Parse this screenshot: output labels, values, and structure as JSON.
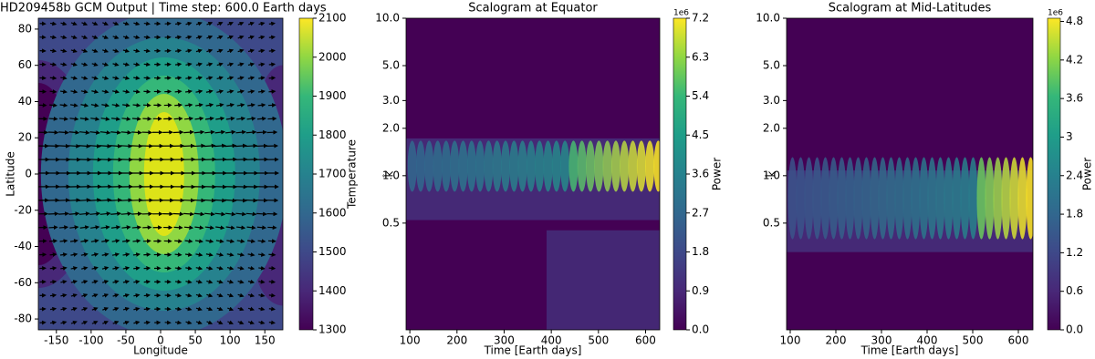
{
  "chart_data": [
    {
      "type": "contour",
      "title": "HD209458b GCM Output | Time step: 600.0 Earth days",
      "xlabel": "Longitude",
      "ylabel": "Latitude",
      "xlim": [
        -176,
        176
      ],
      "ylim": [
        -86,
        86
      ],
      "xticks": [
        -150,
        -100,
        -50,
        0,
        50,
        100,
        150
      ],
      "yticks": [
        -80,
        -60,
        -40,
        -20,
        0,
        20,
        40,
        60,
        80
      ],
      "colorbar": {
        "label": "Temperature",
        "lim": [
          1300,
          2100
        ],
        "ticks": [
          1300,
          1400,
          1500,
          1600,
          1700,
          1800,
          1900,
          2000,
          2100
        ]
      }
    },
    {
      "type": "scalogram",
      "title": "Scalogram at Equator",
      "xlabel": "Time [Earth days]",
      "ylabel": "k̂",
      "xlim": [
        92,
        630
      ],
      "ylim": [
        0.105,
        10
      ],
      "ylog": true,
      "xticks": [
        100,
        200,
        300,
        400,
        500,
        600
      ],
      "yticks": [
        0.5,
        {
          "value": 1,
          "label": "1.0"
        },
        {
          "value": 2,
          "label": "2.0"
        },
        {
          "value": 3,
          "label": "3.0"
        },
        {
          "value": 5,
          "label": "5.0"
        },
        {
          "value": 10,
          "label": "10.0"
        }
      ],
      "colorbar": {
        "label": "Power",
        "offset_text": "1e6",
        "lim": [
          0,
          7.2
        ],
        "ticks": [
          {
            "value": 0,
            "label": "0.0"
          },
          0.9,
          1.8,
          2.7,
          3.6,
          4.5,
          5.4,
          6.3,
          7.2
        ]
      }
    },
    {
      "type": "scalogram",
      "title": "Scalogram at Mid-Latitudes",
      "xlabel": "Time [Earth days]",
      "ylabel": "k̂",
      "xlim": [
        92,
        632
      ],
      "ylim": [
        0.105,
        10
      ],
      "ylog": true,
      "xticks": [
        100,
        200,
        300,
        400,
        500,
        600
      ],
      "yticks": [
        0.5,
        {
          "value": 1,
          "label": "1.0"
        },
        {
          "value": 2,
          "label": "2.0"
        },
        {
          "value": 3,
          "label": "3.0"
        },
        {
          "value": 5,
          "label": "5.0"
        },
        {
          "value": 10,
          "label": "10.0"
        }
      ],
      "colorbar": {
        "label": "Power",
        "offset_text": "1e6",
        "lim": [
          0,
          4.85
        ],
        "ticks": [
          {
            "value": 0,
            "label": "0.0"
          },
          0.6,
          1.2,
          1.8,
          2.4,
          3.0,
          3.6,
          4.2,
          4.8
        ]
      }
    }
  ]
}
